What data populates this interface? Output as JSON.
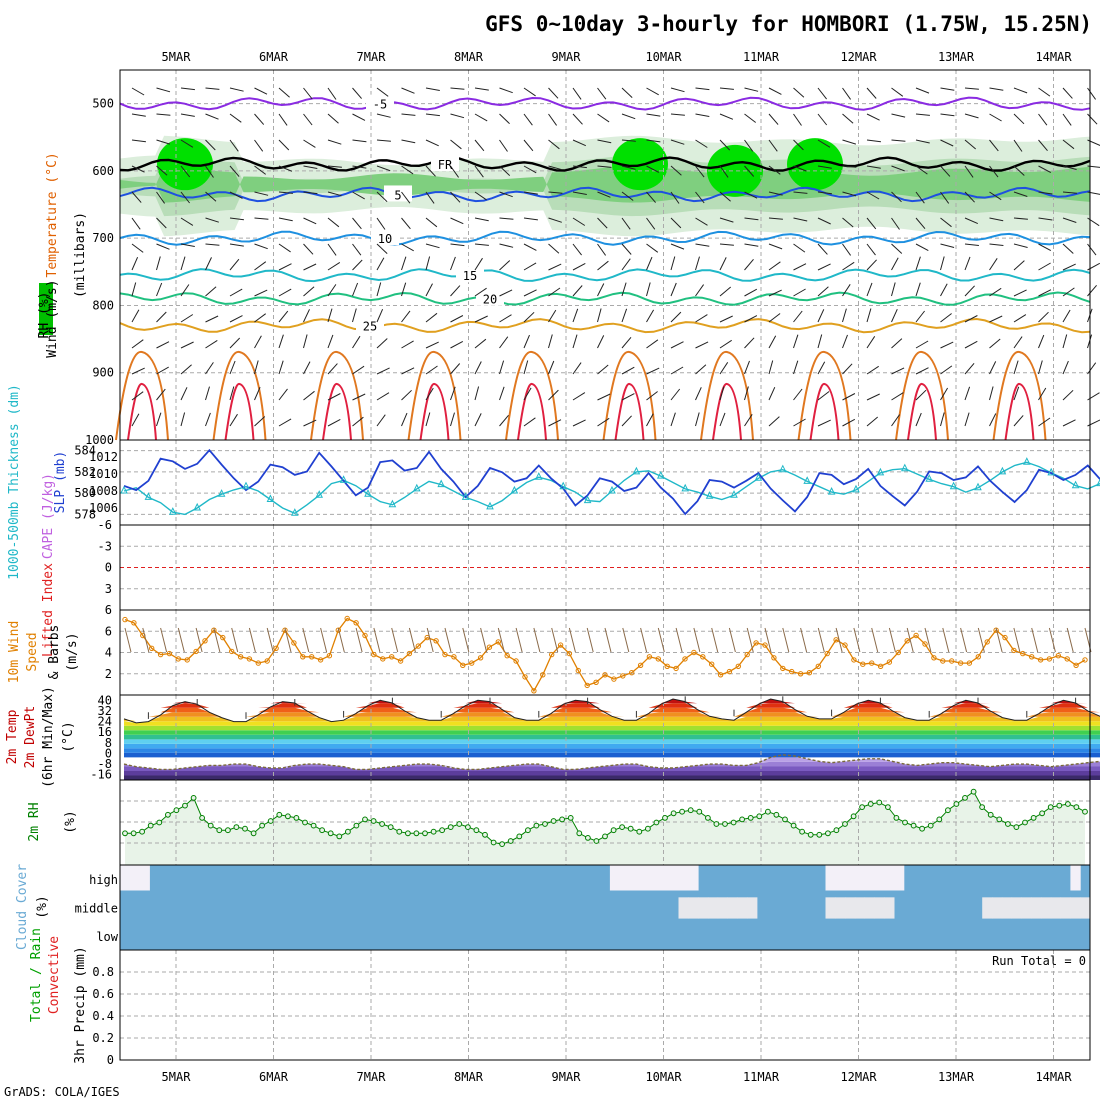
{
  "title": "GFS 0~10day 3-hourly for HOMBORI (1.75W, 15.25N)",
  "credit": "GrADS: COLA/IGES",
  "time_axis": {
    "days": [
      "5MAR",
      "6MAR",
      "7MAR",
      "8MAR",
      "9MAR",
      "10MAR",
      "11MAR",
      "12MAR",
      "13MAR",
      "14MAR"
    ]
  },
  "colors": {
    "temperature": "#e06000",
    "wind": "#000000",
    "rh": "#00c000",
    "thickness": "#20b8c8",
    "slp": "#2040d0",
    "lifted_index": "#e02020",
    "cape": "#c060e0",
    "wind10": "#e08000",
    "temp2m": "#c00000",
    "rh2m": "#008000",
    "cloud": "#6aaad4",
    "precip_total": "#00a000",
    "precip_conv": "#e02020"
  },
  "chart_data": [
    {
      "type": "contour",
      "panel": "upper-air",
      "ylabel_parts": [
        "Wind (m/s)",
        "Temperature (°C)",
        "RH (%)",
        "(millibars)"
      ],
      "y_ticks": [
        "500",
        "600",
        "700",
        "800",
        "900",
        "1000"
      ],
      "ylim": [
        450,
        1000
      ],
      "temperature_contours": [
        {
          "label": "-5",
          "level": 500
        },
        {
          "label": "FR",
          "level": 590
        },
        {
          "label": "5",
          "level": 635
        },
        {
          "label": "10",
          "level": 700
        },
        {
          "label": "15",
          "level": 755
        },
        {
          "label": "20",
          "level": 790
        },
        {
          "label": "25",
          "level": 830
        }
      ],
      "rh_contours": [
        "10",
        "30",
        "50"
      ]
    },
    {
      "type": "line",
      "panel": "thickness-slp",
      "ylabel_left": "1000-500mb Thickness (dm)",
      "ylabel_right": "SLP (mb)",
      "y_ticks_left": [
        "584",
        "582",
        "580",
        "578"
      ],
      "y_ticks_right": [
        "1012",
        "1010",
        "1008",
        "1006"
      ],
      "thickness_lim": [
        577,
        585
      ],
      "slp_lim": [
        1004,
        1014
      ],
      "thickness": [
        580.2,
        580.5,
        579.6,
        579.1,
        578.2,
        578.0,
        578.6,
        579.4,
        579.9,
        580.3,
        580.6,
        580.2,
        579.4,
        578.6,
        578.1,
        578.9,
        579.8,
        580.9,
        581.2,
        580.7,
        579.9,
        579.2,
        578.9,
        579.6,
        580.4,
        581.1,
        580.8,
        580.2,
        579.6,
        579.2,
        578.7,
        579.3,
        580.2,
        581.0,
        581.5,
        581.2,
        580.6,
        580.1,
        579.3,
        579.2,
        580.2,
        581.2,
        582.0,
        582.1,
        581.6,
        581.0,
        580.4,
        580.1,
        579.7,
        579.4,
        579.8,
        580.6,
        581.4,
        582.0,
        582.2,
        581.7,
        581.1,
        580.6,
        580.1,
        579.9,
        580.3,
        581.1,
        581.9,
        582.2,
        582.3,
        581.8,
        581.3,
        580.9,
        580.6,
        580.1,
        580.5,
        581.2,
        582.0,
        582.6,
        582.9,
        582.5,
        581.9,
        581.4,
        580.7,
        580.4,
        580.9,
        581.6,
        582.4,
        583.0,
        583.3,
        582.9,
        582.3,
        581.8,
        581.4,
        581.0,
        581.4,
        582.1,
        582.8,
        583.2,
        583.3,
        582.9,
        582.3,
        581.9,
        581.4
      ],
      "slp": [
        1008.6,
        1008.1,
        1009.2,
        1011.8,
        1011.5,
        1010.6,
        1011.2,
        1012.8,
        1011.1,
        1009.5,
        1008.1,
        1009.1,
        1011.1,
        1010.8,
        1009.9,
        1010.3,
        1012.5,
        1010.9,
        1009.2,
        1007.5,
        1008.4,
        1011.4,
        1011.6,
        1010.4,
        1010.7,
        1012.6,
        1010.6,
        1009.1,
        1007.3,
        1008.6,
        1010.7,
        1010.2,
        1009.1,
        1009.5,
        1011.0,
        1009.5,
        1008.3,
        1006.3,
        1007.5,
        1009.5,
        1009.1,
        1008.0,
        1008.4,
        1010.1,
        1008.4,
        1007.1,
        1005.3,
        1006.8,
        1009.3,
        1009.1,
        1008.4,
        1009.2,
        1010.1,
        1008.3,
        1006.9,
        1005.6,
        1007.3,
        1010.1,
        1009.9,
        1008.8,
        1009.4,
        1010.6,
        1008.6,
        1007.4,
        1006.3,
        1007.9,
        1010.3,
        1010.1,
        1009.3,
        1009.6,
        1010.9,
        1009.2,
        1007.9,
        1006.7,
        1008.1,
        1010.5,
        1010.1,
        1009.3,
        1009.9,
        1011.0,
        1009.4,
        1008.1,
        1007.1,
        1008.6,
        1010.7,
        1010.5,
        1009.5,
        1010.1,
        1011.2,
        1009.7,
        1008.5,
        1007.4,
        1008.9,
        1010.9,
        1010.3,
        1009.6,
        1010.2,
        1010.0,
        1009.3
      ]
    },
    {
      "type": "line",
      "panel": "stability",
      "ylabel_parts": [
        "Lifted Index",
        "CAPE (J/kg)"
      ],
      "y_ticks": [
        "-6",
        "-3",
        "0",
        "3",
        "6"
      ],
      "ylim": [
        -6,
        6
      ],
      "lifted_index": 0,
      "cape": 0
    },
    {
      "type": "line",
      "panel": "wind10m",
      "ylabel_parts": [
        "10m Wind",
        "Speed",
        "& Barbs",
        "(m/s)"
      ],
      "y_ticks": [
        "2",
        "4",
        "6"
      ],
      "ylim": [
        0,
        8
      ],
      "values": [
        7.1,
        6.8,
        5.6,
        4.4,
        3.8,
        3.9,
        3.4,
        3.3,
        4.1,
        5.1,
        6.1,
        5.4,
        4.1,
        3.6,
        3.4,
        3.0,
        3.2,
        4.4,
        6.1,
        4.9,
        3.6,
        3.6,
        3.3,
        3.7,
        6.1,
        7.2,
        6.8,
        5.6,
        3.8,
        3.4,
        3.6,
        3.2,
        3.9,
        4.6,
        5.4,
        5.1,
        3.8,
        3.6,
        2.8,
        3.0,
        3.5,
        4.5,
        5.0,
        3.7,
        3.2,
        1.7,
        0.4,
        1.9,
        3.8,
        4.7,
        3.9,
        2.3,
        0.9,
        1.2,
        1.9,
        1.5,
        1.8,
        2.1,
        2.8,
        3.6,
        3.4,
        2.7,
        2.5,
        3.4,
        4.0,
        3.6,
        2.9,
        1.9,
        2.2,
        2.7,
        3.8,
        4.9,
        4.7,
        3.5,
        2.5,
        2.2,
        2.0,
        2.1,
        2.7,
        3.9,
        5.2,
        4.7,
        3.3,
        2.9,
        3.0,
        2.7,
        3.1,
        4.0,
        5.1,
        5.6,
        4.8,
        3.5,
        3.2,
        3.2,
        3.0,
        3.0,
        3.6,
        5.0,
        6.1,
        5.4,
        4.2,
        3.9,
        3.6,
        3.3,
        3.4,
        3.7,
        3.4,
        2.8,
        3.3
      ]
    },
    {
      "type": "area",
      "panel": "temp-dewpoint",
      "ylabel_parts": [
        "2m Temp",
        "2m DewPt",
        "(6hr Min/Max)",
        "(°C)"
      ],
      "y_ticks": [
        "40",
        "32",
        "24",
        "16",
        "8",
        "0",
        "-8",
        "-16"
      ],
      "ylim": [
        -20,
        44
      ],
      "temperature": [
        26,
        23,
        24,
        29,
        36,
        39,
        37,
        31,
        27,
        24,
        24,
        29,
        35,
        39,
        38,
        32,
        27,
        24,
        25,
        30,
        36,
        40,
        38,
        32,
        27,
        25,
        25,
        30,
        36,
        40,
        39,
        33,
        27,
        25,
        25,
        30,
        37,
        40,
        39,
        33,
        28,
        25,
        25,
        30,
        37,
        41,
        39,
        33,
        28,
        26,
        25,
        31,
        37,
        41,
        39,
        33,
        28,
        26,
        26,
        31,
        37,
        40,
        38,
        32,
        27,
        25,
        25,
        30,
        36,
        40,
        38,
        32,
        27,
        25,
        25,
        30,
        36,
        40,
        38,
        32,
        28,
        26,
        26,
        31,
        37,
        42,
        40,
        34,
        28,
        26,
        26,
        31,
        37,
        41,
        39,
        33,
        28,
        25,
        26
      ],
      "dewpoint": [
        -8,
        -10,
        -11,
        -12,
        -12,
        -11,
        -10,
        -9,
        -9,
        -8,
        -8,
        -10,
        -11,
        -11,
        -9,
        -8,
        -8,
        -9,
        -10,
        -12,
        -12,
        -11,
        -10,
        -9,
        -8,
        -8,
        -9,
        -11,
        -12,
        -12,
        -11,
        -10,
        -9,
        -8,
        -8,
        -10,
        -12,
        -12,
        -11,
        -10,
        -9,
        -8,
        -8,
        -10,
        -11,
        -11,
        -10,
        -9,
        -8,
        -8,
        -9,
        -9,
        -7,
        -3,
        -1,
        -2,
        -4,
        -6,
        -7,
        -6,
        -5,
        -4,
        -4,
        -6,
        -8,
        -9,
        -8,
        -7,
        -7,
        -8,
        -9,
        -10,
        -9,
        -8,
        -8,
        -9,
        -10,
        -9,
        -8,
        -7,
        -6,
        -5,
        -5,
        -6,
        -7,
        -8,
        -9,
        -9,
        -8,
        -7,
        -7,
        -8,
        -9,
        -10,
        -11,
        -11,
        -11,
        -12,
        -13
      ]
    },
    {
      "type": "line",
      "panel": "rh2m",
      "ylabel_parts": [
        "2m RH",
        "(%)"
      ],
      "values": [
        18,
        18,
        19,
        23,
        25,
        30,
        33,
        36,
        41,
        28,
        23,
        20,
        20,
        22,
        21,
        18,
        23,
        26,
        30,
        29,
        28,
        25,
        23,
        20,
        18,
        16,
        19,
        23,
        27,
        26,
        24,
        22,
        19,
        18,
        18,
        18,
        19,
        20,
        22,
        24,
        22,
        20,
        17,
        12,
        11,
        13,
        16,
        20,
        23,
        24,
        26,
        27,
        28,
        18,
        15,
        13,
        16,
        20,
        22,
        21,
        19,
        21,
        25,
        28,
        31,
        32,
        33,
        32,
        28,
        24,
        24,
        25,
        27,
        28,
        29,
        32,
        30,
        27,
        23,
        19,
        17,
        17,
        18,
        20,
        24,
        29,
        35,
        37,
        38,
        35,
        28,
        25,
        23,
        21,
        23,
        27,
        33,
        37,
        41,
        45,
        35,
        30,
        27,
        24,
        22,
        25,
        28,
        31,
        35,
        36,
        37,
        35,
        32
      ]
    },
    {
      "type": "heatmap",
      "panel": "cloud-cover",
      "ylabel_parts": [
        "Cloud Cover",
        "(%)"
      ],
      "levels": [
        "high",
        "middle",
        "low"
      ],
      "high": [
        0,
        0,
        0,
        1,
        1,
        1,
        1,
        1,
        1,
        1,
        1,
        1,
        1,
        1,
        1,
        1,
        1,
        1,
        1,
        1,
        1,
        1,
        1,
        1,
        1,
        1,
        1,
        1,
        1,
        1,
        1,
        1,
        1,
        1,
        1,
        1,
        1,
        1,
        1,
        1,
        1,
        1,
        1,
        1,
        1,
        1,
        1,
        1,
        1,
        1,
        0,
        0,
        0,
        0,
        0,
        0,
        0,
        0,
        0,
        1,
        1,
        1,
        1,
        1,
        1,
        1,
        1,
        1,
        1,
        1,
        1,
        1,
        0,
        0,
        0,
        0,
        0,
        0,
        0,
        0,
        1,
        1,
        1,
        1,
        1,
        1,
        1,
        1,
        1,
        1,
        1,
        1,
        1,
        1,
        1,
        1,
        1,
        0,
        1
      ],
      "middle": [
        1,
        1,
        1,
        1,
        1,
        1,
        1,
        1,
        1,
        1,
        1,
        1,
        1,
        1,
        1,
        1,
        1,
        1,
        1,
        1,
        1,
        1,
        1,
        1,
        1,
        1,
        1,
        1,
        1,
        1,
        1,
        1,
        1,
        1,
        1,
        1,
        1,
        1,
        1,
        1,
        1,
        1,
        1,
        1,
        1,
        1,
        1,
        1,
        1,
        1,
        1,
        1,
        1,
        1,
        1,
        1,
        1,
        0,
        0,
        0,
        0,
        0,
        0,
        0,
        0,
        1,
        1,
        1,
        1,
        1,
        1,
        1,
        0,
        0,
        0,
        0,
        0,
        0,
        0,
        1,
        1,
        1,
        1,
        1,
        1,
        1,
        1,
        1,
        0,
        0,
        0,
        0,
        0,
        0,
        0,
        0,
        0,
        0,
        0
      ],
      "low": 1
    },
    {
      "type": "bar",
      "panel": "precipitation",
      "ylabel_parts": [
        "3hr Precip (mm)",
        "Total / Rain",
        "Convective"
      ],
      "y_ticks": [
        "0",
        "0.2",
        "0.4",
        "0.6",
        "0.8"
      ],
      "ylim": [
        0,
        1
      ],
      "run_total_label": "Run Total = 0",
      "values": 0
    }
  ]
}
